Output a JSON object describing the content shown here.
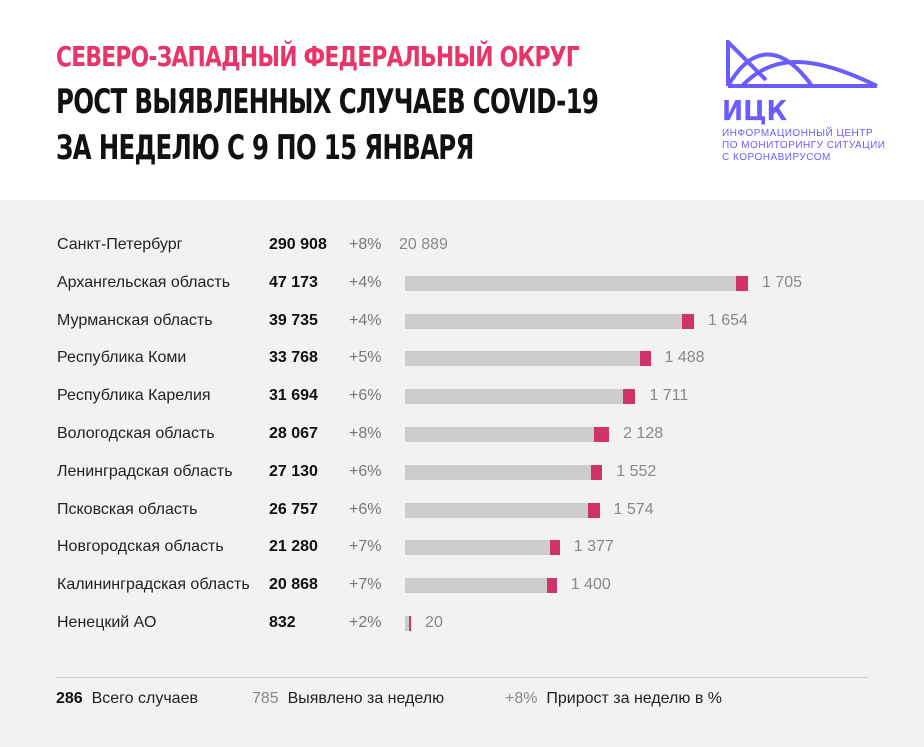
{
  "header": {
    "title_line1": "СЕВЕРО-ЗАПАДНЫЙ ФЕДЕРАЛЬНЫЙ ОКРУГ",
    "title_line2": "РОСТ ВЫЯВЛЕННЫХ СЛУЧАЕВ COVID-19",
    "title_line3": "ЗА НЕДЕЛЮ С 9 ПО 15 ЯНВАРЯ"
  },
  "logo": {
    "name": "ИЦК",
    "subtitle": [
      "ИНФОРМАЦИОННЫЙ ЦЕНТР",
      "ПО МОНИТОРИНГУ СИТУАЦИИ",
      "С КОРОНАВИРУСОМ"
    ]
  },
  "colors": {
    "accent": "#e8336b",
    "bar_total": "#cccccc",
    "bar_increase": "#d0336a",
    "logo": "#6a5cff",
    "panel_bg": "#f2f2f2"
  },
  "chart_data": {
    "type": "bar",
    "orientation": "horizontal",
    "rows": [
      {
        "region": "Санкт-Петербург",
        "total": 290908,
        "total_label": "290 908",
        "growth_label": "+8%",
        "weekly": 20889,
        "weekly_label": "20 889",
        "bar_shown": false
      },
      {
        "region": "Архангельская область",
        "total": 47173,
        "total_label": "47 173",
        "growth_label": "+4%",
        "weekly": 1705,
        "weekly_label": "1 705",
        "bar_shown": true
      },
      {
        "region": "Мурманская область",
        "total": 39735,
        "total_label": "39 735",
        "growth_label": "+4%",
        "weekly": 1654,
        "weekly_label": "1 654",
        "bar_shown": true
      },
      {
        "region": "Республика Коми",
        "total": 33768,
        "total_label": "33 768",
        "growth_label": "+5%",
        "weekly": 1488,
        "weekly_label": "1 488",
        "bar_shown": true
      },
      {
        "region": "Республика Карелия",
        "total": 31694,
        "total_label": "31 694",
        "growth_label": "+6%",
        "weekly": 1711,
        "weekly_label": "1 711",
        "bar_shown": true
      },
      {
        "region": "Вологодская область",
        "total": 28067,
        "total_label": "28 067",
        "growth_label": "+8%",
        "weekly": 2128,
        "weekly_label": "2 128",
        "bar_shown": true
      },
      {
        "region": "Ленинградская область",
        "total": 27130,
        "total_label": "27 130",
        "growth_label": "+6%",
        "weekly": 1552,
        "weekly_label": "1 552",
        "bar_shown": true
      },
      {
        "region": "Псковская область",
        "total": 26757,
        "total_label": "26 757",
        "growth_label": "+6%",
        "weekly": 1574,
        "weekly_label": "1 574",
        "bar_shown": true
      },
      {
        "region": "Новгородская область",
        "total": 21280,
        "total_label": "21 280",
        "growth_label": "+7%",
        "weekly": 1377,
        "weekly_label": "1 377",
        "bar_shown": true
      },
      {
        "region": "Калининградская область",
        "total": 20868,
        "total_label": "20 868",
        "growth_label": "+7%",
        "weekly": 1400,
        "weekly_label": "1 400",
        "bar_shown": true
      },
      {
        "region": "Ненецкий АО",
        "total": 832,
        "total_label": "832",
        "growth_label": "+2%",
        "weekly": 20,
        "weekly_label": "20",
        "bar_shown": true
      }
    ],
    "legend": {
      "total_sample": "286",
      "total_text": "Всего случаев",
      "weekly_sample": "785",
      "weekly_text": "Выявлено за неделю",
      "growth_sample": "+8%",
      "growth_text": "Прирост за неделю в %"
    }
  }
}
